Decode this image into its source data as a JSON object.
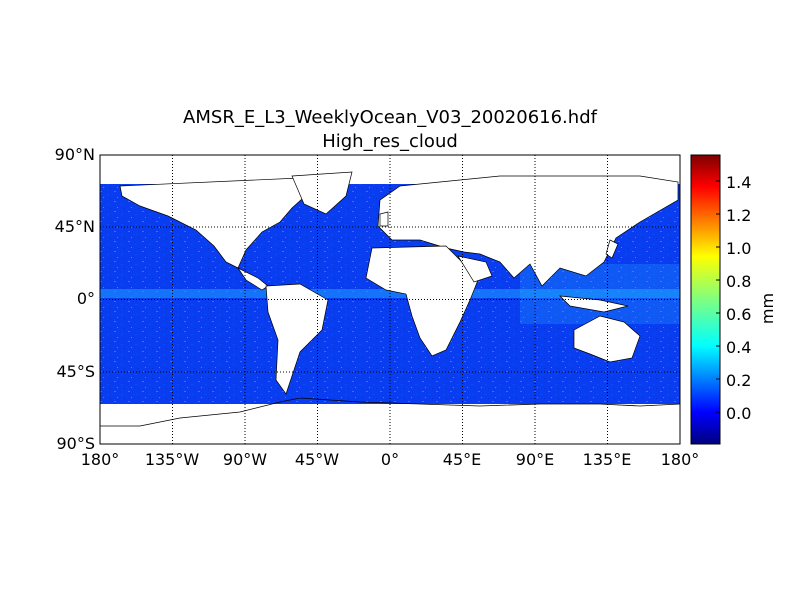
{
  "title": {
    "line1": "AMSR_E_L3_WeeklyOcean_V03_20020616.hdf",
    "line2": "High_res_cloud"
  },
  "map": {
    "projection": "cylindrical",
    "lat_range": [
      -90,
      90
    ],
    "lon_range": [
      -180,
      180
    ],
    "grid": "dotted",
    "land_color": "#ffffff",
    "coastline_color": "#000000",
    "lat_labels": [
      "90°N",
      "45°N",
      "0°",
      "45°S",
      "90°S"
    ],
    "lon_labels": [
      "180°",
      "135°W",
      "90°W",
      "45°W",
      "0°",
      "45°E",
      "90°E",
      "135°E",
      "180°"
    ]
  },
  "colorbar": {
    "colormap": "jet",
    "unit": "mm",
    "range": [
      -0.18,
      1.57
    ],
    "ticks": [
      "0.0",
      "0.2",
      "0.4",
      "0.6",
      "0.8",
      "1.0",
      "1.2",
      "1.4"
    ]
  }
}
